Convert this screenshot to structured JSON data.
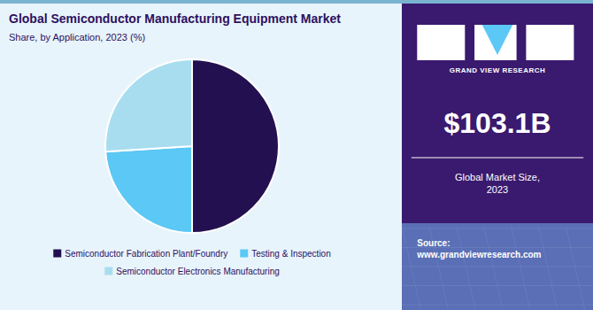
{
  "chart_data": {
    "type": "pie",
    "title": "Global Semiconductor Manufacturing Equipment Market",
    "subtitle": "Share, by Application, 2023 (%)",
    "categories": [
      "Semiconductor Fabrication Plant/Foundry",
      "Testing & Inspection",
      "Semiconductor Electronics Manufacturing"
    ],
    "values": [
      50.0,
      24.0,
      26.0
    ],
    "colors": [
      "#231050",
      "#5bc8f5",
      "#a8ddf0"
    ],
    "legend": "bottom",
    "annotations": [
      "GRAND VIEW RESEARCH",
      "$103.1B",
      "Global Market Size,\n2023",
      "Source:\nwww.grandviewresearch.com"
    ]
  }
}
